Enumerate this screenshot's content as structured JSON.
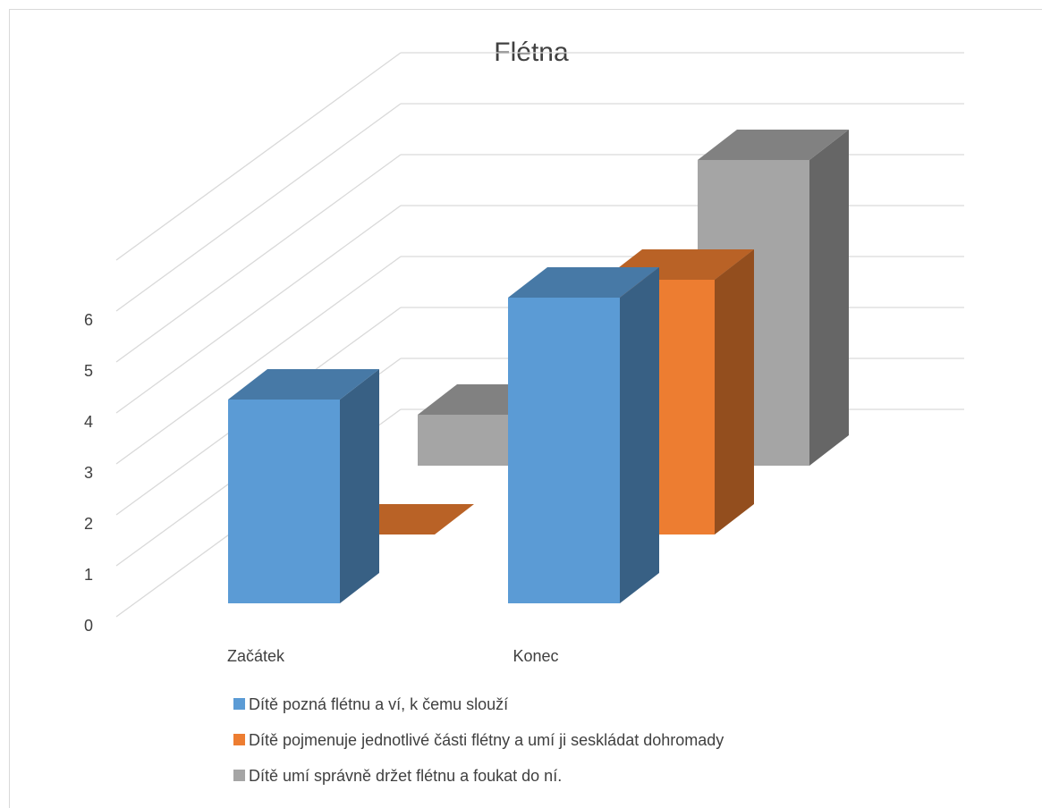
{
  "chart_data": {
    "type": "bar",
    "title": "Flétna",
    "categories": [
      "Začátek",
      "Konec"
    ],
    "yticks": [
      "0",
      "1",
      "2",
      "3",
      "4",
      "5",
      "6"
    ],
    "ylim": [
      0,
      6
    ],
    "grid": true,
    "legend_position": "bottom",
    "series": [
      {
        "name": "Dítě pozná flétnu a ví, k čemu slouží",
        "values": [
          4,
          6
        ],
        "color": "#5b9bd5"
      },
      {
        "name": "Dítě pojmenuje jednotlivé části flétny a umí ji seskládat dohromady",
        "values": [
          0,
          5
        ],
        "color": "#ed7d31"
      },
      {
        "name": "Dítě umí správně držet flétnu a foukat do ní.",
        "values": [
          1,
          6
        ],
        "color": "#a5a5a5"
      }
    ]
  }
}
